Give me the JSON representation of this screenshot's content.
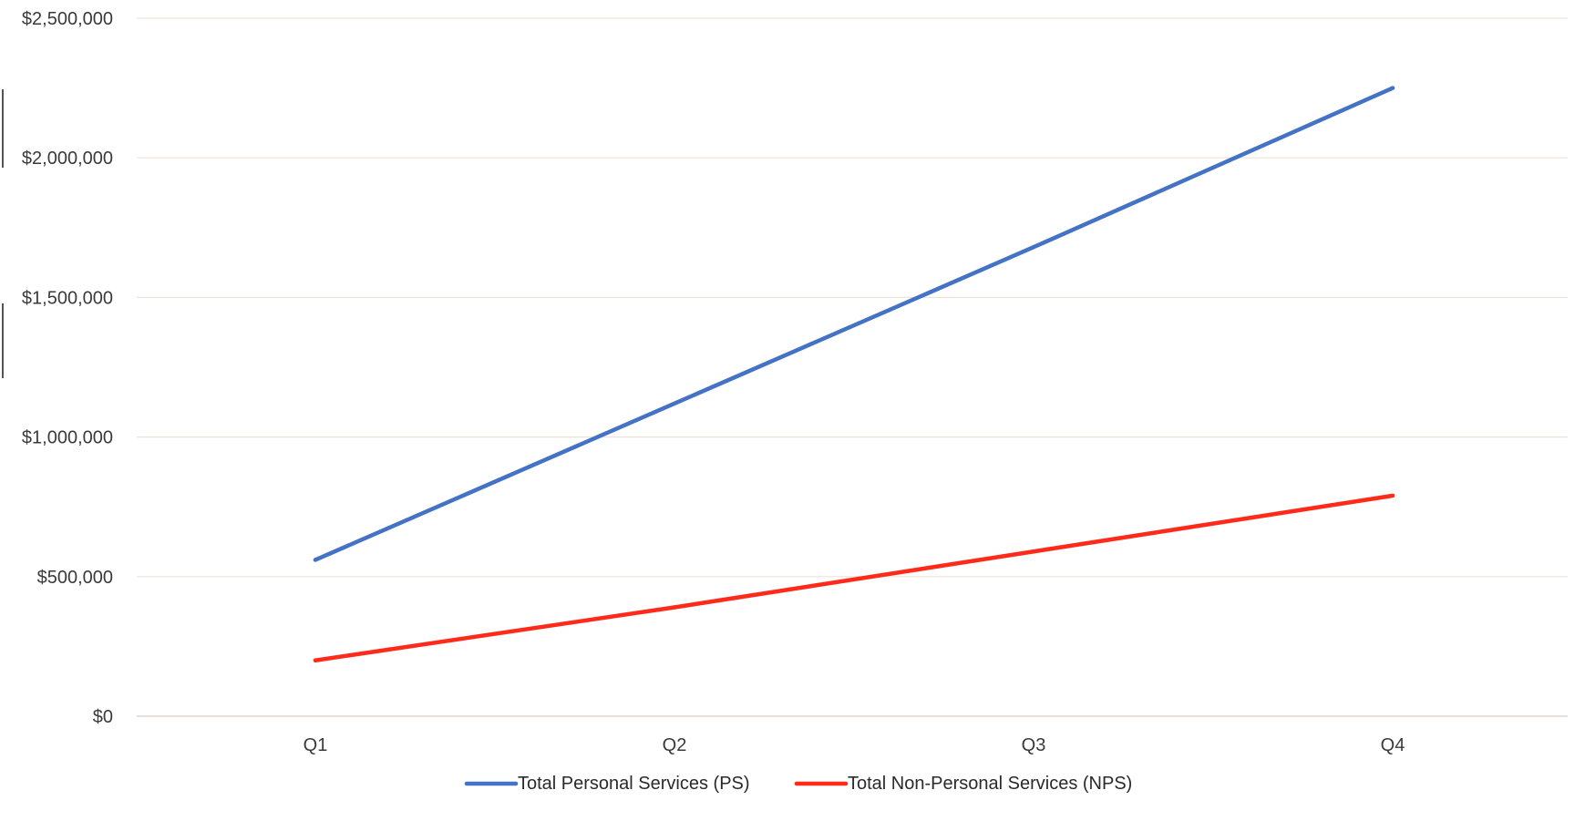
{
  "chart_data": {
    "type": "line",
    "title": "",
    "xlabel": "",
    "ylabel": "",
    "categories": [
      "Q1",
      "Q2",
      "Q3",
      "Q4"
    ],
    "ylim": [
      0,
      2500000
    ],
    "yticks": [
      0,
      500000,
      1000000,
      1500000,
      2000000,
      2500000
    ],
    "ytick_labels": [
      "$0",
      "$500,000",
      "$1,000,000",
      "$1,500,000",
      "$2,000,000",
      "$2,500,000"
    ],
    "grid": true,
    "legend_position": "bottom",
    "series": [
      {
        "name": "Total Personal Services (PS)",
        "color": "#4472c4",
        "values": [
          560000,
          1120000,
          1680000,
          2250000
        ]
      },
      {
        "name": "Total Non-Personal Services (NPS)",
        "color": "#ff2a1a",
        "values": [
          200000,
          390000,
          590000,
          790000
        ]
      }
    ]
  }
}
